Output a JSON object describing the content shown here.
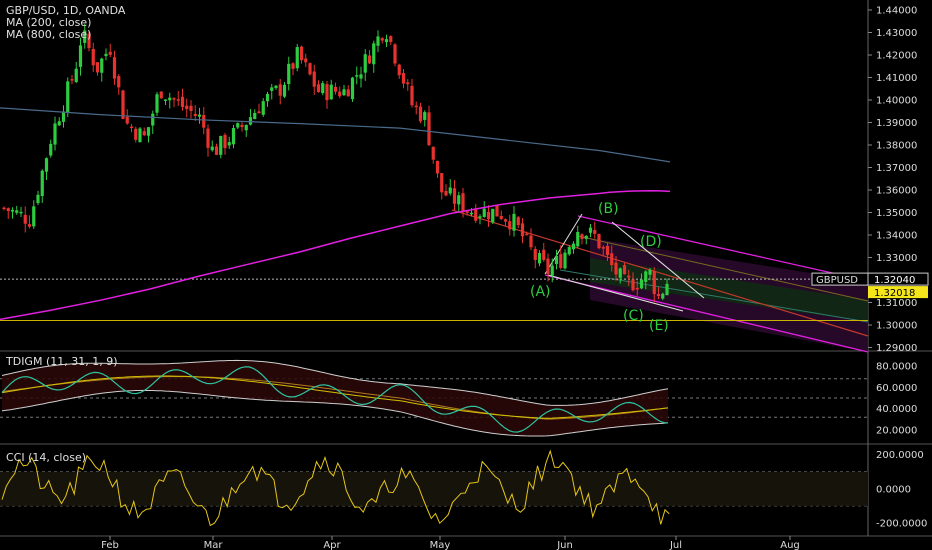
{
  "header": {
    "symbol_line": "GBP/USD, 1D, OANDA",
    "ma1": "MA (200, close)",
    "ma2": "MA (800, close)"
  },
  "indicators": {
    "tdi_label": "TDIGM (11, 31, 1, 9)",
    "cci_label": "CCI (14, close)"
  },
  "colors": {
    "up": "#2ecc40",
    "down": "#e8322d",
    "ma200": "#e020e0",
    "ma800": "#4a6a8a",
    "channel": "#e020e0",
    "channel_mid": "#c0392b",
    "support": "#c8b400",
    "wave_text": "#2ecc40",
    "cci": "#e6c619",
    "tdi_fast": "#2ec4a0",
    "tdi_slow": "#d0c000"
  },
  "chart_data": [
    {
      "type": "line",
      "title": "GBP/USD, 1D, OANDA",
      "x_tick_labels": [
        "Feb",
        "Mar",
        "Apr",
        "May",
        "Jun",
        "Jul",
        "Aug"
      ],
      "y_tick_labels": [
        "1.44000",
        "1.43000",
        "1.42000",
        "1.41000",
        "1.40000",
        "1.39000",
        "1.38000",
        "1.37000",
        "1.36000",
        "1.35000",
        "1.34000",
        "1.33000",
        "1.32000",
        "1.31000",
        "1.30000",
        "1.29000"
      ],
      "ylim": [
        1.287,
        1.442
      ],
      "price_tags": [
        {
          "label": "GBPUSD",
          "value": "1.32040"
        },
        {
          "label": "",
          "value": "1.32018"
        }
      ],
      "support_level": 1.302,
      "series": [
        {
          "name": "MA (200, close)",
          "x": [
            0,
            50,
            100,
            150,
            200,
            250,
            300,
            350,
            400,
            450,
            500,
            550,
            600,
            610,
            630,
            650,
            660,
            670
          ],
          "y": [
            1.3025,
            1.3065,
            1.311,
            1.316,
            1.3218,
            1.3272,
            1.3325,
            1.3385,
            1.344,
            1.3495,
            1.3535,
            1.3565,
            1.3585,
            1.359,
            1.3595,
            1.3597,
            1.3596,
            1.3594
          ]
        },
        {
          "name": "MA (800, close)",
          "x": [
            0,
            100,
            200,
            300,
            400,
            500,
            600,
            670
          ],
          "y": [
            1.3965,
            1.3935,
            1.3912,
            1.3895,
            1.3875,
            1.3825,
            1.3775,
            1.3725
          ]
        }
      ],
      "wave_labels": [
        "(A)",
        "(B)",
        "(C)",
        "(D)",
        "(E)"
      ]
    },
    {
      "type": "line",
      "title": "TDIGM (11, 31, 1, 9)",
      "y_tick_labels": [
        "80.0000",
        "60.0000",
        "40.0000",
        "20.0000"
      ],
      "ylim": [
        8,
        92
      ],
      "reference_lines": [
        68,
        50,
        32
      ]
    },
    {
      "type": "line",
      "title": "CCI (14, close)",
      "y_tick_labels": [
        "200.0000",
        "0.0000",
        "-200.0000"
      ],
      "ylim": [
        -270,
        250
      ],
      "reference_lines": [
        100,
        -100
      ]
    }
  ]
}
